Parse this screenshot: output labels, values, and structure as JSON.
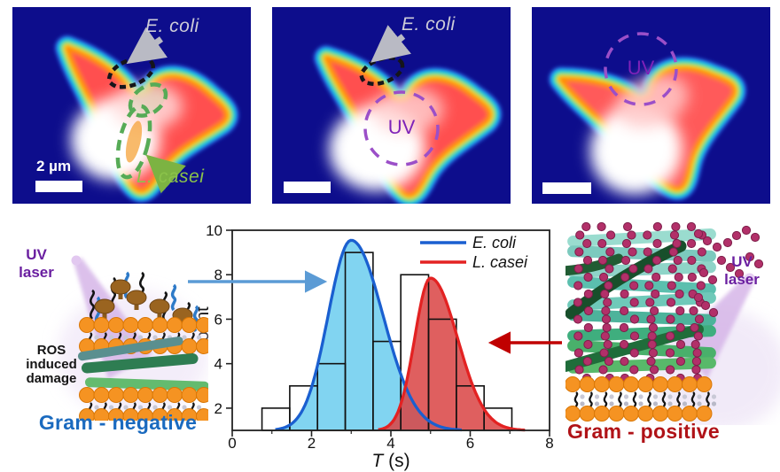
{
  "figure": {
    "type": "scientific-figure",
    "description_visible_text_only": true
  },
  "colors": {
    "panel_background": "#0d0d8c",
    "ecoli_label": "#cdccd8",
    "lcasei_label": "#8bc34a",
    "uv_circle": "#9b4fc8",
    "uv_text": "#7e22b8",
    "uv_laser_text": "#6a1fa0",
    "gram_negative_caption": "#1a6abf",
    "gram_positive_caption": "#b01217",
    "blue_pointer_arrow": "#5b9bd5",
    "red_pointer_arrow": "#c00000",
    "scalebar": "#ffffff"
  },
  "panels": [
    {
      "labels": {
        "ecoli": "E. coli",
        "lcasei": "L. casei",
        "scalebar": "2 µm"
      }
    },
    {
      "labels": {
        "ecoli": "E. coli",
        "uv": "UV"
      }
    },
    {
      "labels": {
        "uv": "UV"
      }
    }
  ],
  "illustrations": {
    "left": {
      "laser": "UV laser",
      "damage": "ROS induced damage",
      "caption": "Gram - negative"
    },
    "right": {
      "laser": "UV laser",
      "caption": "Gram - positive"
    }
  },
  "chart_data": {
    "type": "bar",
    "subtype": "histogram-with-gaussian-fits",
    "title": "",
    "xlabel": "T (s)",
    "xlabel_parts": [
      {
        "text": "T",
        "italic": true
      },
      {
        "text": " (s)",
        "italic": false
      }
    ],
    "ylabel": "Count",
    "xlim": [
      0,
      8
    ],
    "ylim": [
      1,
      10
    ],
    "xticks": [
      0,
      2,
      4,
      6,
      8
    ],
    "xminorticks": [
      1,
      3,
      5,
      7
    ],
    "yticks": [
      2,
      4,
      6,
      8,
      10
    ],
    "grid": false,
    "bins": {
      "start": 0.75,
      "width": 0.7,
      "counts": [
        2,
        3,
        4,
        9,
        5,
        8,
        6,
        3,
        2
      ],
      "bar_fill": "#ffffff",
      "bar_stroke": "#111111"
    },
    "series": [
      {
        "name": "E. coli",
        "shape": "gaussian",
        "mean": 3.0,
        "sigma_left": 0.58,
        "sigma_right": 0.8,
        "peak": 9.55,
        "baseline": 1,
        "line_color": "#1a5fd0",
        "fill_color": "#76d0f0",
        "fill_opacity": 0.92
      },
      {
        "name": "L. casei",
        "shape": "gaussian",
        "mean": 5.0,
        "sigma_left": 0.4,
        "sigma_right": 0.68,
        "peak": 7.85,
        "baseline": 1,
        "line_color": "#e32222",
        "fill_color": "#d94343",
        "fill_opacity": 0.85
      }
    ],
    "legend": {
      "position": "top-right",
      "entries": [
        "E. coli",
        "L. casei"
      ]
    }
  }
}
